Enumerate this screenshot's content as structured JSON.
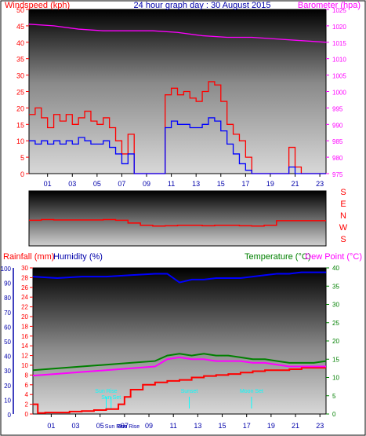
{
  "header": {
    "left_label": "Windspeed (kph)",
    "center_title": "24 hour graph day : 30 August 2015",
    "right_label": "Barometer (hpa)"
  },
  "lower_header": {
    "rainfall_label": "Rainfall (mm)",
    "humidity_label": "Humidity (%)",
    "temperature_label": "Temperature (°C)",
    "dewpoint_label": "Dew Point (°C)"
  },
  "colors": {
    "wind_gust": "#ff0000",
    "wind_avg": "#0000ff",
    "barometer": "#ff00ff",
    "direction": "#ff0000",
    "rain": "#ff0000",
    "humidity": "#0000ff",
    "temperature": "#008000",
    "dewpoint": "#ff00ff",
    "annotations": "#00ffff",
    "left_axis_red": "#ff0000",
    "left_axis_blue": "#0000aa",
    "right_axis_magenta": "#ff00ff",
    "right_axis_green": "#008000"
  },
  "chart_data": [
    {
      "type": "line",
      "name_hint": "wind-and-barometer",
      "x_ticks": [
        "01",
        "03",
        "05",
        "07",
        "09",
        "11",
        "13",
        "15",
        "17",
        "19",
        "21",
        "23"
      ],
      "ylim_left": [
        0,
        50
      ],
      "yticks_left": [
        0,
        5,
        10,
        15,
        20,
        25,
        30,
        35,
        40,
        45,
        50
      ],
      "ylim_right": [
        975,
        1025
      ],
      "yticks_right": [
        975,
        980,
        985,
        990,
        995,
        1000,
        1005,
        1010,
        1015,
        1020,
        1025
      ],
      "series": [
        {
          "key": "gust",
          "axis": "left",
          "x": [
            0,
            0.5,
            1,
            1.5,
            2,
            2.5,
            3,
            3.5,
            4,
            4.5,
            5,
            5.5,
            6,
            6.5,
            7,
            7.5,
            8,
            8.5,
            9,
            9.5,
            10,
            10.5,
            11,
            11.5,
            12,
            12.5,
            13,
            13.5,
            14,
            14.5,
            15,
            15.5,
            16,
            16.5,
            17,
            17.5,
            18,
            18.5,
            19,
            19.5,
            20,
            20.5,
            21,
            21.5,
            22,
            22.5,
            23,
            23.5,
            24
          ],
          "values": [
            18,
            20,
            17,
            14,
            18,
            16,
            18,
            15,
            17,
            19,
            16,
            15,
            17,
            14,
            10,
            6,
            12,
            0,
            0,
            0,
            0,
            0,
            24,
            26,
            24,
            25,
            23,
            22,
            25,
            28,
            27,
            22,
            15,
            12,
            10,
            5,
            0,
            0,
            0,
            0,
            0,
            0,
            8,
            2,
            0,
            0,
            0,
            0,
            0
          ]
        },
        {
          "key": "avg",
          "axis": "left",
          "x": [
            0,
            0.5,
            1,
            1.5,
            2,
            2.5,
            3,
            3.5,
            4,
            4.5,
            5,
            5.5,
            6,
            6.5,
            7,
            7.5,
            8,
            8.5,
            9,
            9.5,
            10,
            10.5,
            11,
            11.5,
            12,
            12.5,
            13,
            13.5,
            14,
            14.5,
            15,
            15.5,
            16,
            16.5,
            17,
            17.5,
            18,
            18.5,
            19,
            19.5,
            20,
            20.5,
            21,
            21.5,
            22,
            22.5,
            23,
            23.5,
            24
          ],
          "values": [
            10,
            9,
            10,
            9,
            10,
            9,
            10,
            9,
            11,
            10,
            9,
            9,
            10,
            8,
            6,
            3,
            6,
            0,
            0,
            0,
            0,
            0,
            14,
            16,
            15,
            15,
            14,
            14,
            15,
            17,
            16,
            13,
            9,
            6,
            3,
            1,
            0,
            0,
            0,
            0,
            0,
            0,
            2,
            0,
            0,
            0,
            0,
            0,
            0
          ]
        },
        {
          "key": "barometer",
          "axis": "right",
          "x": [
            0,
            2,
            4,
            6,
            8,
            10,
            12,
            14,
            16,
            18,
            20,
            22,
            24
          ],
          "values": [
            1020.5,
            1020,
            1019,
            1018.5,
            1018.5,
            1018.5,
            1018,
            1017,
            1016.5,
            1016.5,
            1016,
            1015.5,
            1015
          ]
        }
      ]
    },
    {
      "type": "line",
      "name_hint": "wind-direction",
      "direction_labels": [
        "S",
        "E",
        "N",
        "W",
        "S"
      ],
      "ylim": [
        0,
        360
      ],
      "series": [
        {
          "key": "direction",
          "x": [
            0,
            1,
            2,
            3,
            4,
            5,
            6,
            7,
            8,
            9,
            10,
            11,
            12,
            13,
            14,
            15,
            16,
            17,
            18,
            19,
            20,
            21,
            22,
            23,
            24
          ],
          "values": [
            168,
            172,
            170,
            170,
            170,
            170,
            172,
            168,
            150,
            135,
            130,
            132,
            135,
            135,
            132,
            135,
            135,
            132,
            130,
            135,
            165,
            165,
            165,
            165,
            165
          ]
        }
      ]
    },
    {
      "type": "line",
      "name_hint": "rain-humidity-temperature",
      "x_ticks": [
        "01",
        "03",
        "05",
        "07",
        "09",
        "11",
        "13",
        "15",
        "17",
        "19",
        "21",
        "23"
      ],
      "ylim_rain": [
        0,
        30
      ],
      "yticks_rain": [
        0,
        2,
        4,
        6,
        8,
        10,
        12,
        14,
        16,
        18,
        20,
        22,
        24,
        26,
        28,
        30
      ],
      "ylim_humidity": [
        0,
        100
      ],
      "yticks_humidity": [
        0,
        10,
        20,
        30,
        40,
        50,
        60,
        70,
        80,
        90,
        100
      ],
      "ylim_temp": [
        0,
        40
      ],
      "yticks_temp": [
        0,
        5,
        10,
        15,
        20,
        25,
        30,
        35,
        40
      ],
      "annotations": [
        {
          "label": "Sun Rise",
          "hour": 6.0
        },
        {
          "label": "Sun Set",
          "hour": 6.4
        },
        {
          "label": "Sunset",
          "hour": 12.8
        },
        {
          "label": "Moon Set",
          "hour": 17.9
        }
      ],
      "footer_labels": [
        "Sun Rise",
        "Sun Rise"
      ],
      "series": [
        {
          "key": "rain",
          "axis": "rain",
          "x": [
            0,
            0.3,
            0.4,
            1,
            2,
            3,
            4,
            5,
            6,
            6.5,
            7,
            7.5,
            8,
            9,
            10,
            11,
            12,
            13,
            14,
            15,
            16,
            17,
            18,
            19,
            20,
            21,
            22,
            23,
            24
          ],
          "values": [
            2,
            2,
            0.2,
            0.3,
            0.3,
            0.5,
            0.6,
            0.8,
            1.0,
            1.0,
            2,
            3.5,
            5,
            6,
            6.5,
            6.8,
            7,
            7.5,
            7.8,
            8,
            8.2,
            8.5,
            8.8,
            9,
            9,
            9.2,
            9.5,
            9.5,
            9.5
          ]
        },
        {
          "key": "humidity",
          "axis": "humidity",
          "x": [
            0,
            2,
            4,
            6,
            8,
            10,
            11,
            12,
            13,
            14,
            15,
            16,
            17,
            18,
            19,
            20,
            21,
            22,
            23,
            24
          ],
          "values": [
            94,
            93,
            94,
            94,
            95,
            96,
            96,
            90,
            92,
            92,
            93,
            93,
            93,
            94,
            95,
            96,
            96,
            97,
            97,
            97
          ]
        },
        {
          "key": "temperature",
          "axis": "temp",
          "x": [
            0,
            2,
            4,
            6,
            8,
            10,
            11,
            12,
            13,
            14,
            15,
            16,
            17,
            18,
            19,
            20,
            21,
            22,
            23,
            24
          ],
          "values": [
            12,
            12.5,
            13,
            13.5,
            14,
            14.5,
            16,
            16.5,
            16,
            16.5,
            16,
            16,
            15.5,
            15,
            15,
            14.5,
            14,
            14,
            14,
            14.5
          ]
        },
        {
          "key": "dewpoint",
          "axis": "temp",
          "x": [
            0,
            2,
            4,
            6,
            8,
            10,
            11,
            12,
            13,
            14,
            15,
            16,
            17,
            18,
            19,
            20,
            21,
            22,
            23,
            24
          ],
          "values": [
            10.5,
            11,
            11.5,
            12,
            12.5,
            13,
            15,
            15.5,
            15,
            15,
            14.5,
            14.5,
            14.5,
            14,
            14,
            13.5,
            13,
            13,
            13,
            13
          ]
        }
      ]
    }
  ]
}
